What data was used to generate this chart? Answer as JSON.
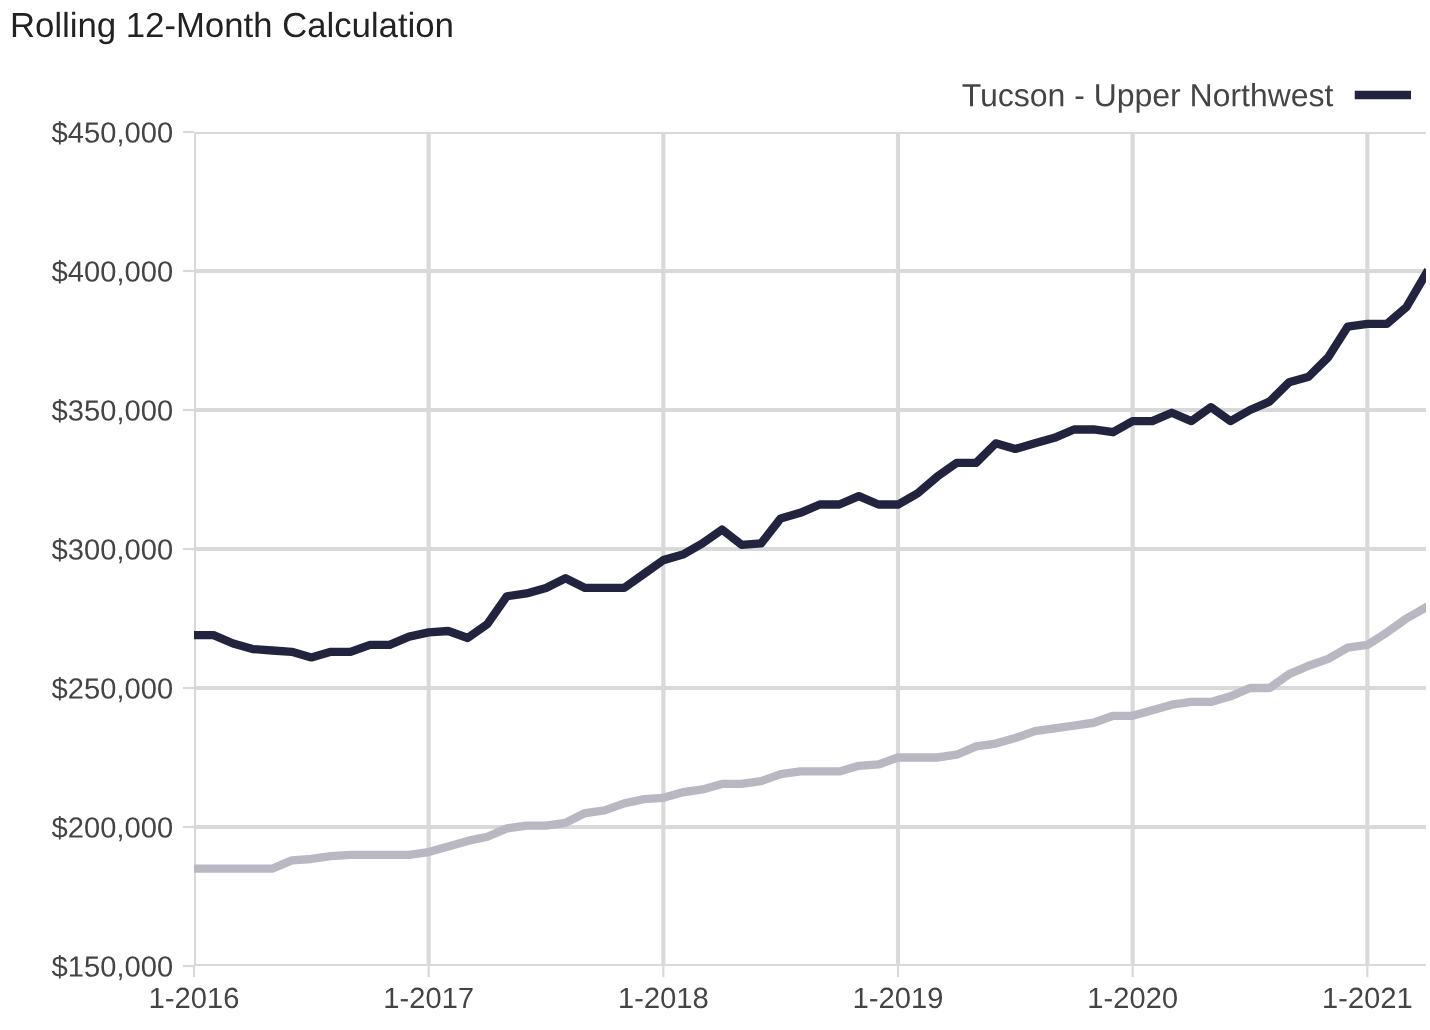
{
  "chart_data": {
    "type": "line",
    "title": "Rolling 12-Month Calculation",
    "categories": [
      "1-2016",
      null,
      null,
      null,
      null,
      null,
      null,
      null,
      null,
      null,
      null,
      null,
      "1-2017",
      null,
      null,
      null,
      null,
      null,
      null,
      null,
      null,
      null,
      null,
      null,
      "1-2018",
      null,
      null,
      null,
      null,
      null,
      null,
      null,
      null,
      null,
      null,
      null,
      "1-2019",
      null,
      null,
      null,
      null,
      null,
      null,
      null,
      null,
      null,
      null,
      null,
      "1-2020",
      null,
      null,
      null,
      null,
      null,
      null,
      null,
      null,
      null,
      null,
      null,
      "1-2021",
      null,
      null,
      null
    ],
    "series": [
      {
        "color": "#b9b8c2",
        "values": [
          185000,
          185000,
          185000,
          185000,
          185000,
          188000,
          188500,
          189500,
          190000,
          190000,
          190000,
          190000,
          191000,
          193000,
          195000,
          196500,
          199500,
          200500,
          200500,
          201500,
          205000,
          206000,
          208500,
          210000,
          210500,
          212500,
          213500,
          215500,
          215500,
          216500,
          219000,
          220000,
          220000,
          220000,
          222000,
          222500,
          225000,
          225000,
          225000,
          226000,
          229000,
          230000,
          232000,
          234500,
          235500,
          236500,
          237500,
          240000,
          240000,
          242000,
          244000,
          245000,
          245000,
          247000,
          250000,
          250000,
          255000,
          258000,
          260500,
          264500,
          265500,
          270000,
          275000,
          279000
        ]
      },
      {
        "name": "Tucson - Upper Northwest",
        "color": "#22233f",
        "values": [
          269000,
          269000,
          266000,
          264000,
          263500,
          263000,
          261000,
          263000,
          263000,
          265500,
          265500,
          268500,
          270000,
          270500,
          268000,
          273000,
          283000,
          284000,
          286000,
          289500,
          286000,
          286000,
          286000,
          291000,
          296000,
          298000,
          302000,
          307000,
          301500,
          302000,
          311000,
          313000,
          316000,
          316000,
          319000,
          316000,
          316000,
          320000,
          326000,
          331000,
          331000,
          338000,
          336000,
          338000,
          340000,
          343000,
          343000,
          342000,
          346000,
          346000,
          349000,
          346000,
          351000,
          346000,
          350000,
          353000,
          360000,
          362000,
          369000,
          380000,
          381000,
          381000,
          387000,
          399000
        ]
      }
    ],
    "ylim": [
      150000,
      450000
    ],
    "yticks": [
      {
        "value": 150000,
        "label": "$150,000"
      },
      {
        "value": 200000,
        "label": "$200,000"
      },
      {
        "value": 250000,
        "label": "$250,000"
      },
      {
        "value": 300000,
        "label": "$300,000"
      },
      {
        "value": 350000,
        "label": "$350,000"
      },
      {
        "value": 400000,
        "label": "$400,000"
      },
      {
        "value": 450000,
        "label": "$450,000"
      }
    ],
    "grid": true,
    "legend": "top right",
    "marker": "none",
    "line_style": "solid"
  }
}
